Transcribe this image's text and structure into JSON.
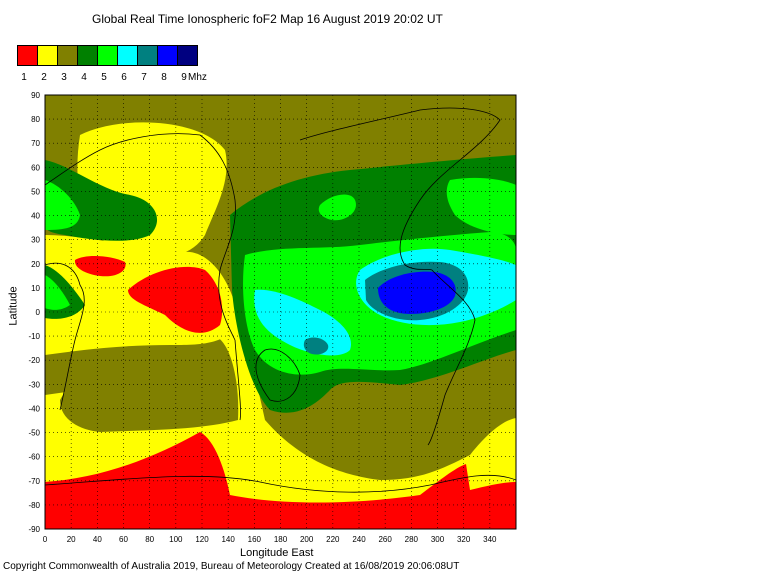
{
  "title": "Global Real Time Ionospheric foF2 Map  16 August 2019 20:02 UT",
  "legend": {
    "colors": [
      "#ff0000",
      "#ffff00",
      "#808000",
      "#008000",
      "#00ff00",
      "#00ffff",
      "#008080",
      "#0000ff",
      "#000080"
    ],
    "labels": [
      "1",
      "2",
      "3",
      "4",
      "5",
      "6",
      "7",
      "8",
      "9"
    ],
    "unit": "Mhz"
  },
  "axes": {
    "ylabel": "Latitude",
    "xlabel": "Longitude East",
    "y_ticks": [
      "90",
      "80",
      "70",
      "60",
      "50",
      "40",
      "30",
      "20",
      "10",
      "0",
      "-10",
      "-20",
      "-30",
      "-40",
      "-50",
      "-60",
      "-70",
      "-80",
      "-90"
    ],
    "x_ticks": [
      "0",
      "20",
      "40",
      "60",
      "80",
      "100",
      "120",
      "140",
      "160",
      "180",
      "200",
      "220",
      "240",
      "260",
      "280",
      "300",
      "320",
      "340"
    ],
    "xlim": [
      0,
      360
    ],
    "ylim": [
      -90,
      90
    ],
    "grid": "dotted"
  },
  "footer": "Copyright Commonwealth of Australia 2019, Bureau of Meteorology     Created at 16/08/2019 20:06:08UT",
  "map_data": {
    "type": "heatmap",
    "features": [
      {
        "name": "peak-blue",
        "value_mhz": 8,
        "lon": 290,
        "lat": 10
      },
      {
        "name": "red-asia",
        "value_mhz": 1,
        "lon": 110,
        "lat": 10
      },
      {
        "name": "red-arabia",
        "value_mhz": 1,
        "lon": 45,
        "lat": 20
      },
      {
        "name": "red-antarctic",
        "value_mhz": 1,
        "lon": 180,
        "lat": -80
      }
    ]
  }
}
